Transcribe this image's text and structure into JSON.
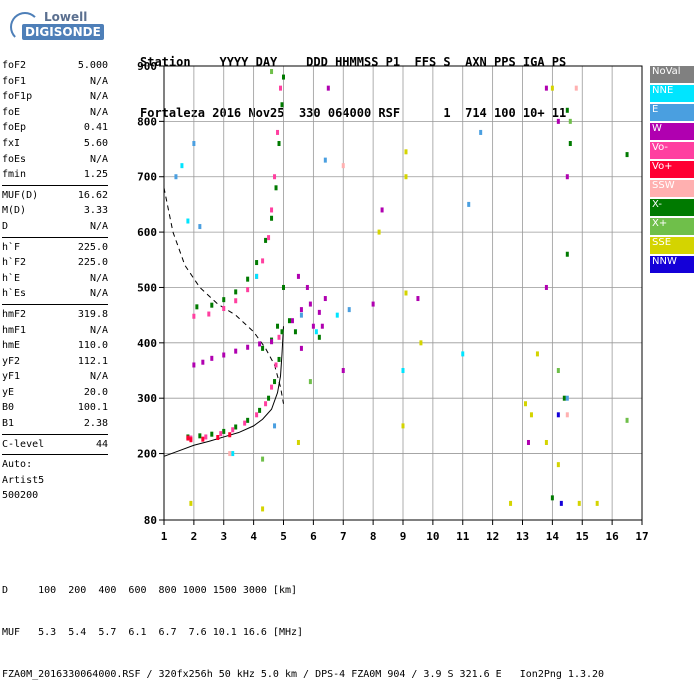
{
  "logo": {
    "line1": "Lowell",
    "line2": "DIGISONDE"
  },
  "header": {
    "line1": "Station    YYYY DAY    DDD HHMMSS P1  FFS S  AXN PPS IGA PS",
    "line2": "Fortaleza 2016 Nov25  330 064000 RSF      1  714 100 10+ 11"
  },
  "params": {
    "group1": [
      {
        "label": "foF2",
        "value": "5.000"
      },
      {
        "label": "foF1",
        "value": "N/A"
      },
      {
        "label": "foF1p",
        "value": "N/A"
      },
      {
        "label": "foE",
        "value": "N/A"
      },
      {
        "label": "foEp",
        "value": "0.41"
      },
      {
        "label": "fxI",
        "value": "5.60"
      },
      {
        "label": "foEs",
        "value": "N/A"
      },
      {
        "label": "fmin",
        "value": "1.25"
      }
    ],
    "group2": [
      {
        "label": "MUF(D)",
        "value": "16.62"
      },
      {
        "label": "M(D)",
        "value": "3.33"
      },
      {
        "label": "D",
        "value": "N/A"
      }
    ],
    "group3": [
      {
        "label": "h`F",
        "value": "225.0"
      },
      {
        "label": "h`F2",
        "value": "225.0"
      },
      {
        "label": "h`E",
        "value": "N/A"
      },
      {
        "label": "h`Es",
        "value": "N/A"
      }
    ],
    "group4": [
      {
        "label": "hmF2",
        "value": "319.8"
      },
      {
        "label": "hmF1",
        "value": "N/A"
      },
      {
        "label": "hmE",
        "value": "110.0"
      },
      {
        "label": "yF2",
        "value": "112.1"
      },
      {
        "label": "yF1",
        "value": "N/A"
      },
      {
        "label": "yE",
        "value": "20.0"
      },
      {
        "label": "B0",
        "value": "100.1"
      },
      {
        "label": "B1",
        "value": "2.38"
      }
    ],
    "group5": [
      {
        "label": "C-level",
        "value": "44"
      }
    ],
    "auto": [
      "Auto:",
      "Artist5",
      "500200"
    ]
  },
  "footer": {
    "line1": "D     100  200  400  600  800 1000 1500 3000 [km]",
    "line2": "MUF   5.3  5.4  5.7  6.1  6.7  7.6 10.1 16.6 [MHz]",
    "line3": "FZA0M_2016330064000.RSF / 320fx256h 50 kHz 5.0 km / DPS-4 FZA0M 904 / 3.9 S 321.6 E   Ion2Png 1.3.20"
  },
  "legend": [
    {
      "label": "NoVal",
      "color": "#808080"
    },
    {
      "label": "NNE",
      "color": "#00e5ff"
    },
    {
      "label": "E",
      "color": "#4a9fe0"
    },
    {
      "label": "W",
      "color": "#b000b0"
    },
    {
      "label": "Vo-",
      "color": "#ff3fa0"
    },
    {
      "label": "Vo+",
      "color": "#ff0033"
    },
    {
      "label": "SSW",
      "color": "#ffb0b0"
    },
    {
      "label": "X-",
      "color": "#007a00"
    },
    {
      "label": "X+",
      "color": "#6fbf4a"
    },
    {
      "label": "SSE",
      "color": "#d4d400"
    },
    {
      "label": "NNW",
      "color": "#1400d8"
    }
  ],
  "chart_data": {
    "type": "scatter",
    "xlabel": "",
    "ylabel": "",
    "xlim": [
      1,
      17
    ],
    "ylim": [
      80,
      900
    ],
    "x_ticks": [
      1,
      2,
      3,
      4,
      5,
      6,
      7,
      8,
      9,
      10,
      11,
      12,
      13,
      14,
      15,
      16,
      17
    ],
    "y_ticks": [
      80,
      200,
      300,
      400,
      500,
      600,
      700,
      800,
      900
    ],
    "grid": true,
    "series": [
      {
        "name": "X-",
        "color": "#007a00",
        "points": [
          [
            1.8,
            230
          ],
          [
            2.2,
            232
          ],
          [
            2.6,
            235
          ],
          [
            3.0,
            240
          ],
          [
            3.4,
            248
          ],
          [
            3.8,
            260
          ],
          [
            4.2,
            278
          ],
          [
            4.5,
            300
          ],
          [
            4.7,
            330
          ],
          [
            4.85,
            370
          ],
          [
            4.95,
            420
          ],
          [
            5.0,
            500
          ],
          [
            2.1,
            465
          ],
          [
            2.6,
            468
          ],
          [
            3.0,
            478
          ],
          [
            3.4,
            492
          ],
          [
            3.8,
            515
          ],
          [
            4.1,
            545
          ],
          [
            4.4,
            585
          ],
          [
            4.6,
            625
          ],
          [
            4.75,
            680
          ],
          [
            4.85,
            760
          ],
          [
            4.95,
            830
          ],
          [
            5.0,
            880
          ],
          [
            4.3,
            390
          ],
          [
            4.6,
            405
          ],
          [
            4.8,
            430
          ],
          [
            5.2,
            440
          ],
          [
            5.4,
            420
          ],
          [
            6.2,
            410
          ],
          [
            14.5,
            820
          ],
          [
            14.6,
            760
          ],
          [
            14.5,
            560
          ],
          [
            14.4,
            300
          ],
          [
            16.5,
            740
          ],
          [
            14.0,
            120
          ]
        ]
      },
      {
        "name": "Vo-",
        "color": "#ff3fa0",
        "points": [
          [
            1.9,
            228
          ],
          [
            2.4,
            230
          ],
          [
            2.9,
            236
          ],
          [
            3.3,
            243
          ],
          [
            3.7,
            255
          ],
          [
            4.1,
            270
          ],
          [
            4.4,
            290
          ],
          [
            4.6,
            320
          ],
          [
            4.75,
            360
          ],
          [
            4.85,
            410
          ],
          [
            2.0,
            448
          ],
          [
            2.5,
            452
          ],
          [
            3.0,
            462
          ],
          [
            3.4,
            476
          ],
          [
            3.8,
            496
          ],
          [
            4.1,
            520
          ],
          [
            4.3,
            548
          ],
          [
            4.5,
            590
          ],
          [
            4.6,
            640
          ],
          [
            4.7,
            700
          ],
          [
            4.8,
            780
          ],
          [
            4.9,
            860
          ]
        ]
      },
      {
        "name": "Vo+",
        "color": "#ff0033",
        "points": [
          [
            1.9,
            225
          ],
          [
            2.3,
            226
          ],
          [
            2.8,
            229
          ],
          [
            3.2,
            234
          ],
          [
            1.8,
            228
          ]
        ]
      },
      {
        "name": "W",
        "color": "#b000b0",
        "points": [
          [
            2.0,
            360
          ],
          [
            2.3,
            365
          ],
          [
            2.6,
            372
          ],
          [
            3.0,
            378
          ],
          [
            3.4,
            385
          ],
          [
            3.8,
            392
          ],
          [
            4.2,
            398
          ],
          [
            4.6,
            402
          ],
          [
            5.3,
            440
          ],
          [
            5.6,
            460
          ],
          [
            5.9,
            470
          ],
          [
            6.2,
            455
          ],
          [
            6.4,
            480
          ],
          [
            5.5,
            520
          ],
          [
            5.8,
            500
          ],
          [
            6.0,
            430
          ],
          [
            5.6,
            390
          ],
          [
            6.3,
            430
          ],
          [
            7.0,
            350
          ],
          [
            8.0,
            470
          ],
          [
            8.3,
            640
          ],
          [
            9.5,
            480
          ],
          [
            14.2,
            800
          ],
          [
            14.5,
            700
          ],
          [
            13.8,
            500
          ],
          [
            13.2,
            220
          ],
          [
            13.8,
            860
          ],
          [
            6.5,
            860
          ]
        ]
      },
      {
        "name": "NNE",
        "color": "#00e5ff",
        "points": [
          [
            1.6,
            720
          ],
          [
            1.8,
            620
          ],
          [
            3.3,
            200
          ],
          [
            4.1,
            520
          ],
          [
            6.1,
            420
          ],
          [
            6.8,
            450
          ],
          [
            11.0,
            380
          ],
          [
            9.0,
            350
          ]
        ]
      },
      {
        "name": "E",
        "color": "#4a9fe0",
        "points": [
          [
            1.4,
            700
          ],
          [
            2.0,
            760
          ],
          [
            2.2,
            610
          ],
          [
            6.4,
            730
          ],
          [
            7.2,
            460
          ],
          [
            11.2,
            650
          ],
          [
            11.6,
            780
          ],
          [
            14.5,
            300
          ],
          [
            4.7,
            250
          ],
          [
            5.6,
            450
          ]
        ]
      },
      {
        "name": "SSW",
        "color": "#ffb0b0",
        "points": [
          [
            3.2,
            200
          ],
          [
            7.0,
            720
          ],
          [
            14.5,
            270
          ],
          [
            14.8,
            860
          ]
        ]
      },
      {
        "name": "X+",
        "color": "#6fbf4a",
        "points": [
          [
            4.6,
            890
          ],
          [
            4.3,
            190
          ],
          [
            5.9,
            330
          ],
          [
            14.6,
            800
          ],
          [
            16.5,
            260
          ],
          [
            14.2,
            350
          ]
        ]
      },
      {
        "name": "SSE",
        "color": "#d4d400",
        "points": [
          [
            4.3,
            100
          ],
          [
            5.5,
            220
          ],
          [
            9.1,
            745
          ],
          [
            9.1,
            700
          ],
          [
            9.1,
            490
          ],
          [
            9.0,
            250
          ],
          [
            8.2,
            600
          ],
          [
            9.6,
            400
          ],
          [
            12.6,
            110
          ],
          [
            13.8,
            220
          ],
          [
            13.5,
            380
          ],
          [
            14.0,
            860
          ],
          [
            14.2,
            180
          ],
          [
            14.9,
            110
          ],
          [
            15.5,
            110
          ],
          [
            1.9,
            110
          ],
          [
            13.1,
            290
          ],
          [
            13.3,
            270
          ]
        ]
      },
      {
        "name": "NNW",
        "color": "#1400d8",
        "points": [
          [
            14.2,
            270
          ],
          [
            14.3,
            110
          ]
        ]
      }
    ],
    "curves": [
      {
        "name": "dashed",
        "x": [
          1.0,
          1.3,
          1.7,
          2.2,
          2.8,
          3.4,
          4.0,
          4.4,
          4.7,
          4.9,
          5.0
        ],
        "y": [
          680,
          600,
          540,
          500,
          470,
          450,
          420,
          390,
          360,
          320,
          290
        ]
      },
      {
        "name": "solid",
        "x": [
          1.0,
          1.5,
          2.0,
          2.5,
          3.0,
          3.5,
          4.0,
          4.3,
          4.6,
          4.8,
          4.9,
          4.95,
          5.0
        ],
        "y": [
          195,
          205,
          215,
          222,
          230,
          238,
          250,
          262,
          280,
          310,
          340,
          380,
          430
        ]
      }
    ]
  }
}
